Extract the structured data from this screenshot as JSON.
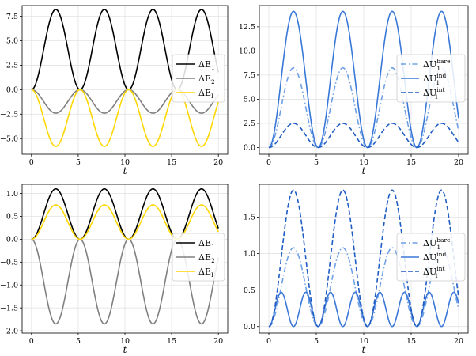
{
  "chart_data": [
    {
      "type": "line",
      "panel": "top-left",
      "xlabel": "t",
      "ylabel": "",
      "xlim": [
        -1,
        21
      ],
      "ylim": [
        -6.6,
        8.6
      ],
      "xticks": [
        0,
        5,
        10,
        15,
        20
      ],
      "yticks": [
        -5.0,
        -2.5,
        0.0,
        2.5,
        5.0,
        7.5
      ],
      "ytick_labels": [
        "−5.0",
        "−2.5",
        "0.0",
        "2.5",
        "5.0",
        "7.5"
      ],
      "grid": true,
      "legend_position": "center-right",
      "period": 5.2,
      "x_range": [
        0,
        20
      ],
      "series": [
        {
          "name": "ΔE",
          "name_sub": "1",
          "amplitude": 8.2,
          "color": "#000000",
          "dash": "solid"
        },
        {
          "name": "ΔE",
          "name_sub": "2",
          "amplitude": -2.4,
          "color": "#808080",
          "dash": "solid"
        },
        {
          "name": "ΔE",
          "name_sub": "I",
          "amplitude": -5.8,
          "color": "#FFD700",
          "dash": "solid"
        }
      ]
    },
    {
      "type": "line",
      "panel": "top-right",
      "xlabel": "t",
      "ylabel": "",
      "xlim": [
        -1,
        21
      ],
      "ylim": [
        -0.7,
        14.7
      ],
      "xticks": [
        0,
        5,
        10,
        15,
        20
      ],
      "yticks": [
        0.0,
        2.5,
        5.0,
        7.5,
        10.0,
        12.5
      ],
      "ytick_labels": [
        "0.0",
        "2.5",
        "5.0",
        "7.5",
        "10.0",
        "12.5"
      ],
      "grid": true,
      "legend_position": "center-right",
      "period": 5.2,
      "x_range": [
        0,
        20
      ],
      "series": [
        {
          "name": "ΔU",
          "name_sub": "1",
          "name_sup": "bare",
          "amplitude": 8.25,
          "color": "#6FA0E6",
          "dash": "dashdot"
        },
        {
          "name": "ΔU",
          "name_sub": "1",
          "name_sup": "ind",
          "amplitude": 14.1,
          "color": "#3A78D8",
          "dash": "solid"
        },
        {
          "name": "ΔU",
          "name_sub": "1",
          "name_sup": "int",
          "amplitude": 2.5,
          "color": "#1F5CC4",
          "dash": "dashed"
        }
      ]
    },
    {
      "type": "line",
      "panel": "bottom-left",
      "xlabel": "t",
      "ylabel": "",
      "xlim": [
        -1,
        21
      ],
      "ylim": [
        -2.05,
        1.2
      ],
      "xticks": [
        0,
        5,
        10,
        15,
        20
      ],
      "yticks": [
        -2.0,
        -1.5,
        -1.0,
        -0.5,
        0.0,
        0.5,
        1.0
      ],
      "ytick_labels": [
        "−2.0",
        "−1.5",
        "−1.0",
        "−0.5",
        "0.0",
        "0.5",
        "1.0"
      ],
      "grid": true,
      "legend_position": "center-right",
      "period": 5.2,
      "x_range": [
        0,
        20
      ],
      "series": [
        {
          "name": "ΔE",
          "name_sub": "1",
          "amplitude": 1.1,
          "color": "#000000",
          "dash": "solid"
        },
        {
          "name": "ΔE",
          "name_sub": "2",
          "amplitude": -1.85,
          "color": "#808080",
          "dash": "solid"
        },
        {
          "name": "ΔE",
          "name_sub": "I",
          "amplitude": 0.75,
          "color": "#FFD700",
          "dash": "solid"
        }
      ]
    },
    {
      "type": "line",
      "panel": "bottom-right",
      "xlabel": "t",
      "ylabel": "",
      "xlim": [
        -1,
        21
      ],
      "ylim": [
        -0.09,
        1.95
      ],
      "xticks": [
        0,
        5,
        10,
        15,
        20
      ],
      "yticks": [
        0.0,
        0.5,
        1.0,
        1.5
      ],
      "ytick_labels": [
        "0.0",
        "0.5",
        "1.0",
        "1.5"
      ],
      "grid": true,
      "legend_position": "center-right",
      "period": 5.2,
      "x_range": [
        0,
        20
      ],
      "series": [
        {
          "name": "ΔU",
          "name_sub": "1",
          "name_sup": "bare",
          "amplitude": 1.08,
          "color": "#6FA0E6",
          "dash": "dashdot"
        },
        {
          "name": "ΔU",
          "name_sub": "1",
          "name_sup": "ind",
          "amplitude": 0.47,
          "color": "#3A78D8",
          "dash": "solid",
          "double_hump": true
        },
        {
          "name": "ΔU",
          "name_sub": "1",
          "name_sup": "int",
          "amplitude": 1.87,
          "color": "#1F5CC4",
          "dash": "dashed"
        }
      ]
    }
  ]
}
